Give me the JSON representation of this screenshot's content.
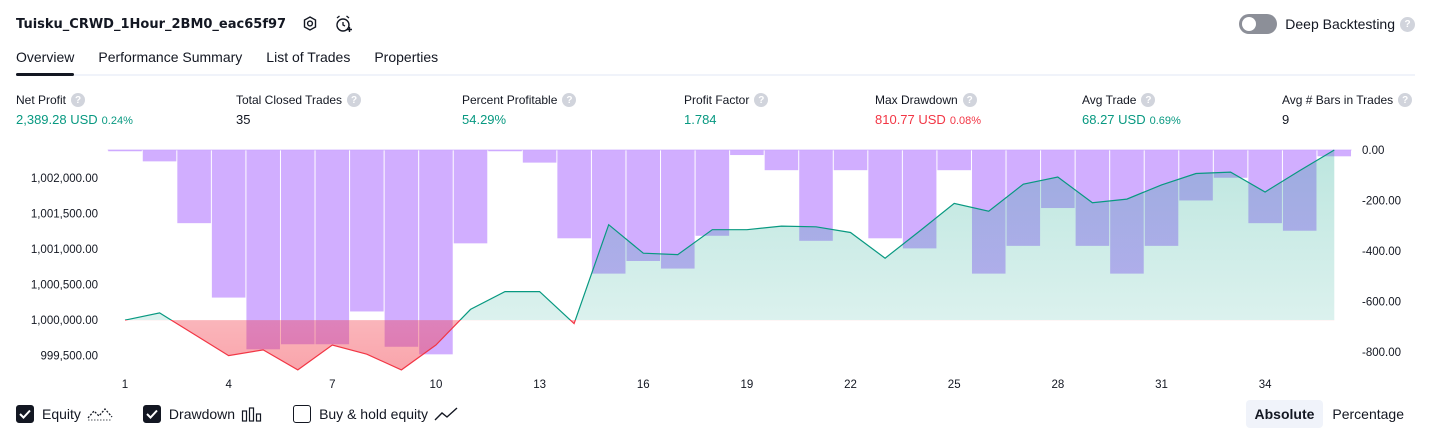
{
  "header": {
    "strategy_name": "Tuisku_CRWD_1Hour_2BM0_eac65f97",
    "settings_icon": "gear-icon",
    "alert_icon": "alarm-clock-plus-icon",
    "deep_backtesting_label": "Deep Backtesting",
    "deep_backtesting_enabled": false,
    "help_glyph": "?"
  },
  "tabs": [
    {
      "label": "Overview",
      "active": true
    },
    {
      "label": "Performance Summary",
      "active": false
    },
    {
      "label": "List of Trades",
      "active": false
    },
    {
      "label": "Properties",
      "active": false
    }
  ],
  "metrics": [
    {
      "label": "Net Profit",
      "value": "2,389.28 USD",
      "pct": "0.24%",
      "color": "green"
    },
    {
      "label": "Total Closed Trades",
      "value": "35",
      "pct": "",
      "color": "dark"
    },
    {
      "label": "Percent Profitable",
      "value": "54.29%",
      "pct": "",
      "color": "green"
    },
    {
      "label": "Profit Factor",
      "value": "1.784",
      "pct": "",
      "color": "green"
    },
    {
      "label": "Max Drawdown",
      "value": "810.77 USD",
      "pct": "0.08%",
      "color": "red"
    },
    {
      "label": "Avg Trade",
      "value": "68.27 USD",
      "pct": "0.69%",
      "color": "green"
    },
    {
      "label": "Avg # Bars in Trades",
      "value": "9",
      "pct": "",
      "color": "dark"
    }
  ],
  "colors": {
    "green": "#089981",
    "red": "#f23645",
    "drawdown_bar": "#c9a0ff",
    "equity_area": "#22ab94",
    "text": "#131722"
  },
  "chart_data": {
    "type": "line",
    "x": [
      1,
      2,
      3,
      4,
      5,
      6,
      7,
      8,
      9,
      10,
      11,
      12,
      13,
      14,
      15,
      16,
      17,
      18,
      19,
      20,
      21,
      22,
      23,
      24,
      25,
      26,
      27,
      28,
      29,
      30,
      31,
      32,
      33,
      34,
      35,
      36
    ],
    "x_tick_labels": [
      "1",
      "4",
      "7",
      "10",
      "13",
      "16",
      "19",
      "22",
      "25",
      "28",
      "31",
      "34"
    ],
    "left_axis": {
      "ticks": [
        "1,002,000.00",
        "1,001,500.00",
        "1,001,000.00",
        "1,000,500.00",
        "1,000,000.00",
        "999,500.00"
      ],
      "ylim": [
        999270,
        1002390
      ]
    },
    "right_axis": {
      "ticks": [
        "0.00",
        "-200.00",
        "-400.00",
        "-600.00",
        "-800.00"
      ],
      "ylim": [
        -880,
        0
      ]
    },
    "baseline": 1000000,
    "series": [
      {
        "name": "Equity",
        "type": "area",
        "values": [
          1000000,
          1000100,
          999800,
          999500,
          999580,
          999300,
          999650,
          999520,
          999300,
          999650,
          1000150,
          1000400,
          1000400,
          999950,
          1001340,
          1000940,
          1000920,
          1001270,
          1001270,
          1001320,
          1001310,
          1001230,
          1000870,
          1001250,
          1001640,
          1001530,
          1001910,
          1002010,
          1001650,
          1001700,
          1001900,
          1002060,
          1002080,
          1001800,
          1002100,
          1002390
        ]
      },
      {
        "name": "Drawdown",
        "type": "bar",
        "values": [
          -5,
          -45,
          -290,
          -585,
          -790,
          -770,
          -770,
          -640,
          -780,
          -810,
          -370,
          -5,
          -50,
          -350,
          -490,
          -440,
          -470,
          -340,
          -20,
          -80,
          -360,
          -80,
          -350,
          -390,
          -80,
          -490,
          -380,
          -230,
          -380,
          -490,
          -380,
          -200,
          -110,
          -290,
          -320,
          -25
        ]
      }
    ]
  },
  "legend": {
    "items": [
      {
        "label": "Equity",
        "checked": true,
        "icon": "equity-line-icon"
      },
      {
        "label": "Drawdown",
        "checked": true,
        "icon": "drawdown-bars-icon"
      },
      {
        "label": "Buy & hold equity",
        "checked": false,
        "icon": "buy-hold-line-icon"
      }
    ],
    "modes": [
      {
        "label": "Absolute",
        "active": true
      },
      {
        "label": "Percentage",
        "active": false
      }
    ]
  }
}
